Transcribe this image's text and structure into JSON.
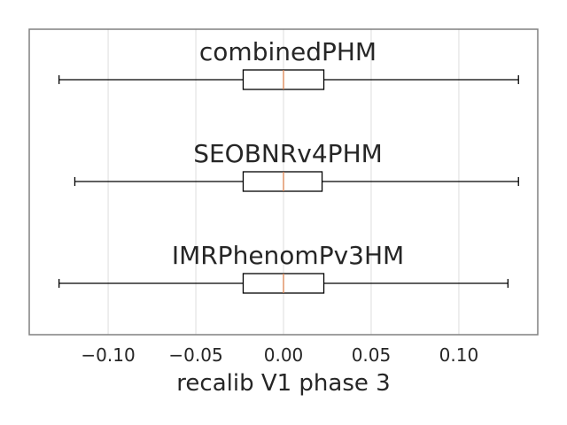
{
  "chart_data": {
    "type": "boxplot",
    "orientation": "horizontal",
    "xlabel": "recalib V1 phase 3",
    "xlim": [
      -0.145,
      0.145
    ],
    "xticks": [
      -0.1,
      -0.05,
      0.0,
      0.05,
      0.1
    ],
    "xtick_labels": [
      "−0.10",
      "−0.05",
      "0.00",
      "0.05",
      "0.10"
    ],
    "grid": true,
    "colors": {
      "box_edge": "#000000",
      "median": "#dd8452",
      "grid": "#dddddd",
      "frame": "#808080"
    },
    "series": [
      {
        "name": "combinedPHM",
        "whisker_low": -0.128,
        "q1": -0.023,
        "median": 0.0,
        "q3": 0.023,
        "whisker_high": 0.134
      },
      {
        "name": "SEOBNRv4PHM",
        "whisker_low": -0.119,
        "q1": -0.023,
        "median": 0.0,
        "q3": 0.022,
        "whisker_high": 0.134
      },
      {
        "name": "IMRPhenomPv3HM",
        "whisker_low": -0.128,
        "q1": -0.023,
        "median": 0.0,
        "q3": 0.023,
        "whisker_high": 0.128
      }
    ]
  }
}
